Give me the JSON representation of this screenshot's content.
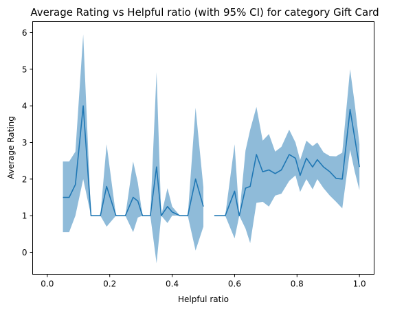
{
  "chart_data": {
    "type": "line",
    "title": "Average Rating vs Helpful ratio (with 95% CI) for category Gift Card",
    "xlabel": "Helpful ratio",
    "ylabel": "Average Rating",
    "xlim": [
      -0.047,
      1.047
    ],
    "ylim": [
      -0.6,
      6.3
    ],
    "xticks": [
      0.0,
      0.2,
      0.4,
      0.6,
      0.8,
      1.0
    ],
    "xtick_labels": [
      "0.0",
      "0.2",
      "0.4",
      "0.6",
      "0.8",
      "1.0"
    ],
    "yticks": [
      0,
      1,
      2,
      3,
      4,
      5,
      6
    ],
    "ytick_labels": [
      "0",
      "1",
      "2",
      "3",
      "4",
      "5",
      "6"
    ],
    "grid": false,
    "legend": "none",
    "colors": {
      "line": "#1f77b4",
      "band": "#1f77b4",
      "band_opacity": 0.5
    },
    "segments": [
      {
        "x": [
          0.05,
          0.07,
          0.09,
          0.115,
          0.14,
          0.17,
          0.19,
          0.22,
          0.25,
          0.275,
          0.29,
          0.305,
          0.33,
          0.35,
          0.365,
          0.385,
          0.4,
          0.425,
          0.45,
          0.475,
          0.5
        ],
        "y": [
          1.5,
          1.5,
          1.85,
          4.0,
          1.0,
          1.0,
          1.8,
          1.0,
          1.0,
          1.5,
          1.4,
          1.0,
          1.0,
          2.33,
          1.0,
          1.25,
          1.1,
          1.0,
          1.0,
          2.0,
          1.25
        ],
        "lower": [
          0.55,
          0.55,
          1.0,
          2.0,
          1.0,
          1.0,
          0.7,
          1.0,
          1.0,
          0.55,
          0.95,
          1.0,
          1.0,
          -0.3,
          1.0,
          0.8,
          1.0,
          1.0,
          1.0,
          0.05,
          0.7
        ],
        "upper": [
          2.48,
          2.48,
          2.75,
          5.95,
          1.0,
          1.0,
          2.95,
          1.0,
          1.0,
          2.48,
          1.9,
          1.0,
          1.0,
          4.92,
          1.0,
          1.75,
          1.25,
          1.0,
          1.0,
          3.95,
          1.78
        ]
      },
      {
        "x": [
          0.535,
          0.57,
          0.6,
          0.615,
          0.635,
          0.65,
          0.67,
          0.69,
          0.71,
          0.73,
          0.75,
          0.775,
          0.795,
          0.81,
          0.83,
          0.85,
          0.865,
          0.885,
          0.905,
          0.925,
          0.945,
          0.97,
          0.985,
          1.0
        ],
        "y": [
          1.0,
          1.0,
          1.67,
          1.0,
          1.75,
          1.8,
          2.67,
          2.2,
          2.25,
          2.15,
          2.25,
          2.67,
          2.57,
          2.1,
          2.57,
          2.33,
          2.53,
          2.33,
          2.2,
          2.02,
          2.0,
          3.9,
          3.12,
          2.33
        ],
        "lower": [
          1.0,
          1.0,
          0.38,
          1.0,
          0.65,
          0.25,
          1.35,
          1.38,
          1.25,
          1.55,
          1.6,
          1.95,
          2.1,
          1.65,
          2.0,
          1.72,
          2.0,
          1.75,
          1.55,
          1.38,
          1.2,
          2.8,
          2.2,
          1.7
        ],
        "upper": [
          1.0,
          1.0,
          2.95,
          1.0,
          2.78,
          3.35,
          3.97,
          3.05,
          3.23,
          2.75,
          2.88,
          3.35,
          3.0,
          2.52,
          3.05,
          2.9,
          3.0,
          2.73,
          2.63,
          2.62,
          2.72,
          5.0,
          4.05,
          2.95
        ]
      }
    ]
  }
}
